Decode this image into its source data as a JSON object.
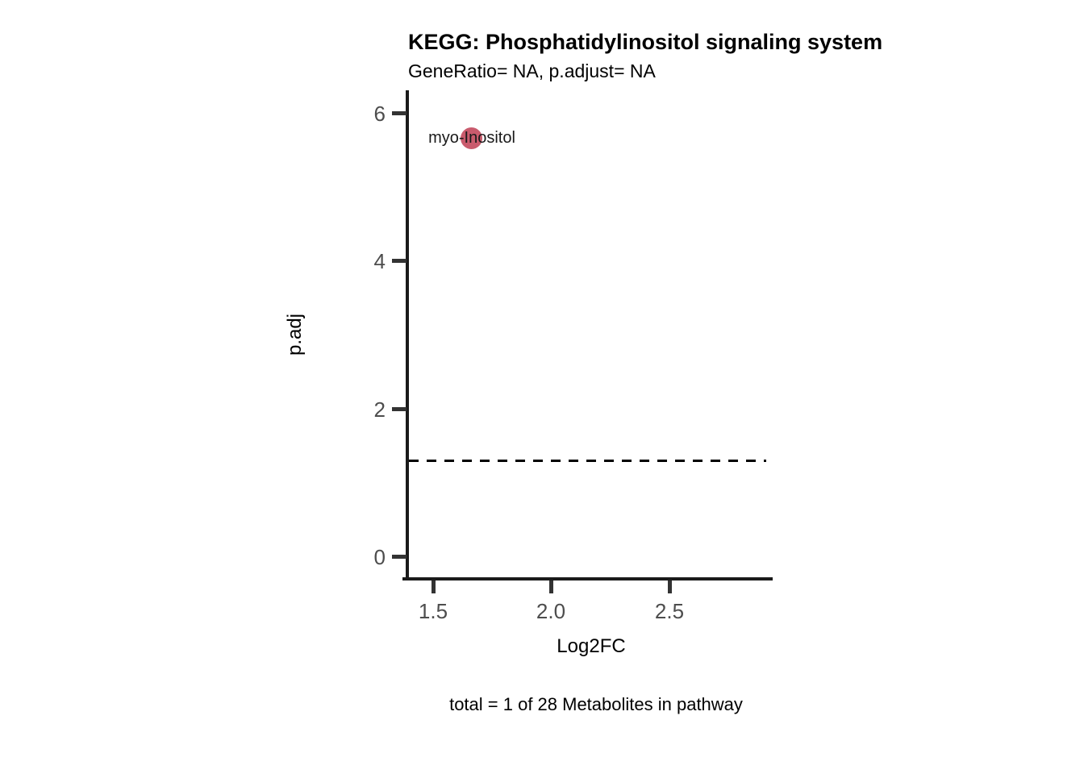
{
  "chart_data": {
    "type": "scatter",
    "title": "KEGG: Phosphatidylinositol signaling system",
    "subtitle": "GeneRatio= NA, p.adjust= NA",
    "xlabel": "Log2FC",
    "ylabel": "p.adj",
    "caption": "total = 1 of 28 Metabolites in pathway",
    "points": [
      {
        "label": "myo-Inositol",
        "x": 1.66,
        "y": 5.66,
        "color": "#C95B6D"
      }
    ],
    "threshold_line": {
      "y": 1.3,
      "style": "dashed",
      "color": "#000000"
    },
    "x_ticks": [
      1.5,
      2.0,
      2.5
    ],
    "y_ticks": [
      0,
      2,
      4,
      6
    ],
    "x_tick_labels": [
      "1.5",
      "2.0",
      "2.5"
    ],
    "y_tick_labels_top_down": [
      "6",
      "4",
      "2",
      "0"
    ],
    "xlim": [
      1.39,
      2.94
    ],
    "ylim": [
      -0.3,
      6.3
    ],
    "grid": false,
    "legend_position": "none",
    "colors": {
      "axis_line": "#1a1a1a",
      "tick_mark": "#333333",
      "tick_label": "#4d4d4d",
      "point": "#C95B6D",
      "text": "#000000",
      "background": "#ffffff"
    }
  }
}
